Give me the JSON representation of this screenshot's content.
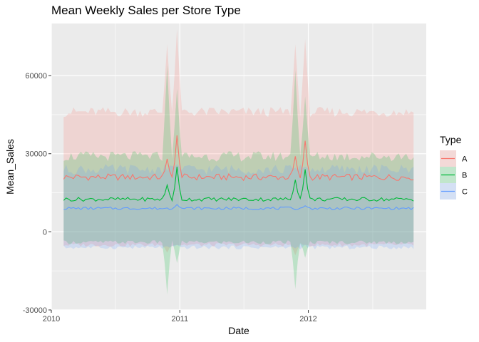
{
  "chart_data": {
    "type": "line",
    "title": "Mean Weekly Sales per Store Type",
    "xlabel": "Date",
    "ylabel": "Mean_Sales",
    "x_range": [
      "2010-01-01",
      "2012-12-01"
    ],
    "ylim": [
      -30000,
      80000
    ],
    "x_ticks": [
      "2010",
      "2011",
      "2012"
    ],
    "y_ticks": [
      -30000,
      0,
      30000,
      60000
    ],
    "grid": true,
    "legend": {
      "title": "Type",
      "position": "right"
    },
    "ribbon_note": "Each series shows mean with a shaded band (mean ± sd).",
    "series": [
      {
        "name": "A",
        "color": "#F8766D",
        "baseline": 21000,
        "upper_baseline": 46000,
        "lower_baseline": -5000,
        "peaks": [
          {
            "date": "2010-11-26",
            "mean": 28000,
            "upper": 72000,
            "lower": -8000
          },
          {
            "date": "2010-12-24",
            "mean": 37000,
            "upper": 78000,
            "lower": -5000
          },
          {
            "date": "2011-11-25",
            "mean": 29000,
            "upper": 72000,
            "lower": -9000
          },
          {
            "date": "2011-12-23",
            "mean": 35000,
            "upper": 74000,
            "lower": -5000
          }
        ]
      },
      {
        "name": "B",
        "color": "#00BA38",
        "baseline": 12500,
        "upper_baseline": 29000,
        "lower_baseline": -4000,
        "peaks": [
          {
            "date": "2010-11-26",
            "mean": 18000,
            "upper": 64000,
            "lower": -24000
          },
          {
            "date": "2010-12-24",
            "mean": 25000,
            "upper": 55000,
            "lower": -12000
          },
          {
            "date": "2011-11-25",
            "mean": 20000,
            "upper": 62000,
            "lower": -22000
          },
          {
            "date": "2011-12-23",
            "mean": 24000,
            "upper": 52000,
            "lower": -10000
          }
        ]
      },
      {
        "name": "C",
        "color": "#619CFF",
        "baseline": 9000,
        "upper_baseline": 24000,
        "lower_baseline": -6000,
        "peaks": [
          {
            "date": "2010-12-24",
            "mean": 10500,
            "upper": 26000,
            "lower": -5000
          },
          {
            "date": "2011-12-23",
            "mean": 10000,
            "upper": 25000,
            "lower": -5000
          }
        ]
      }
    ],
    "date_start": "2010-02-05",
    "date_end": "2012-10-26",
    "frequency": "weekly"
  }
}
